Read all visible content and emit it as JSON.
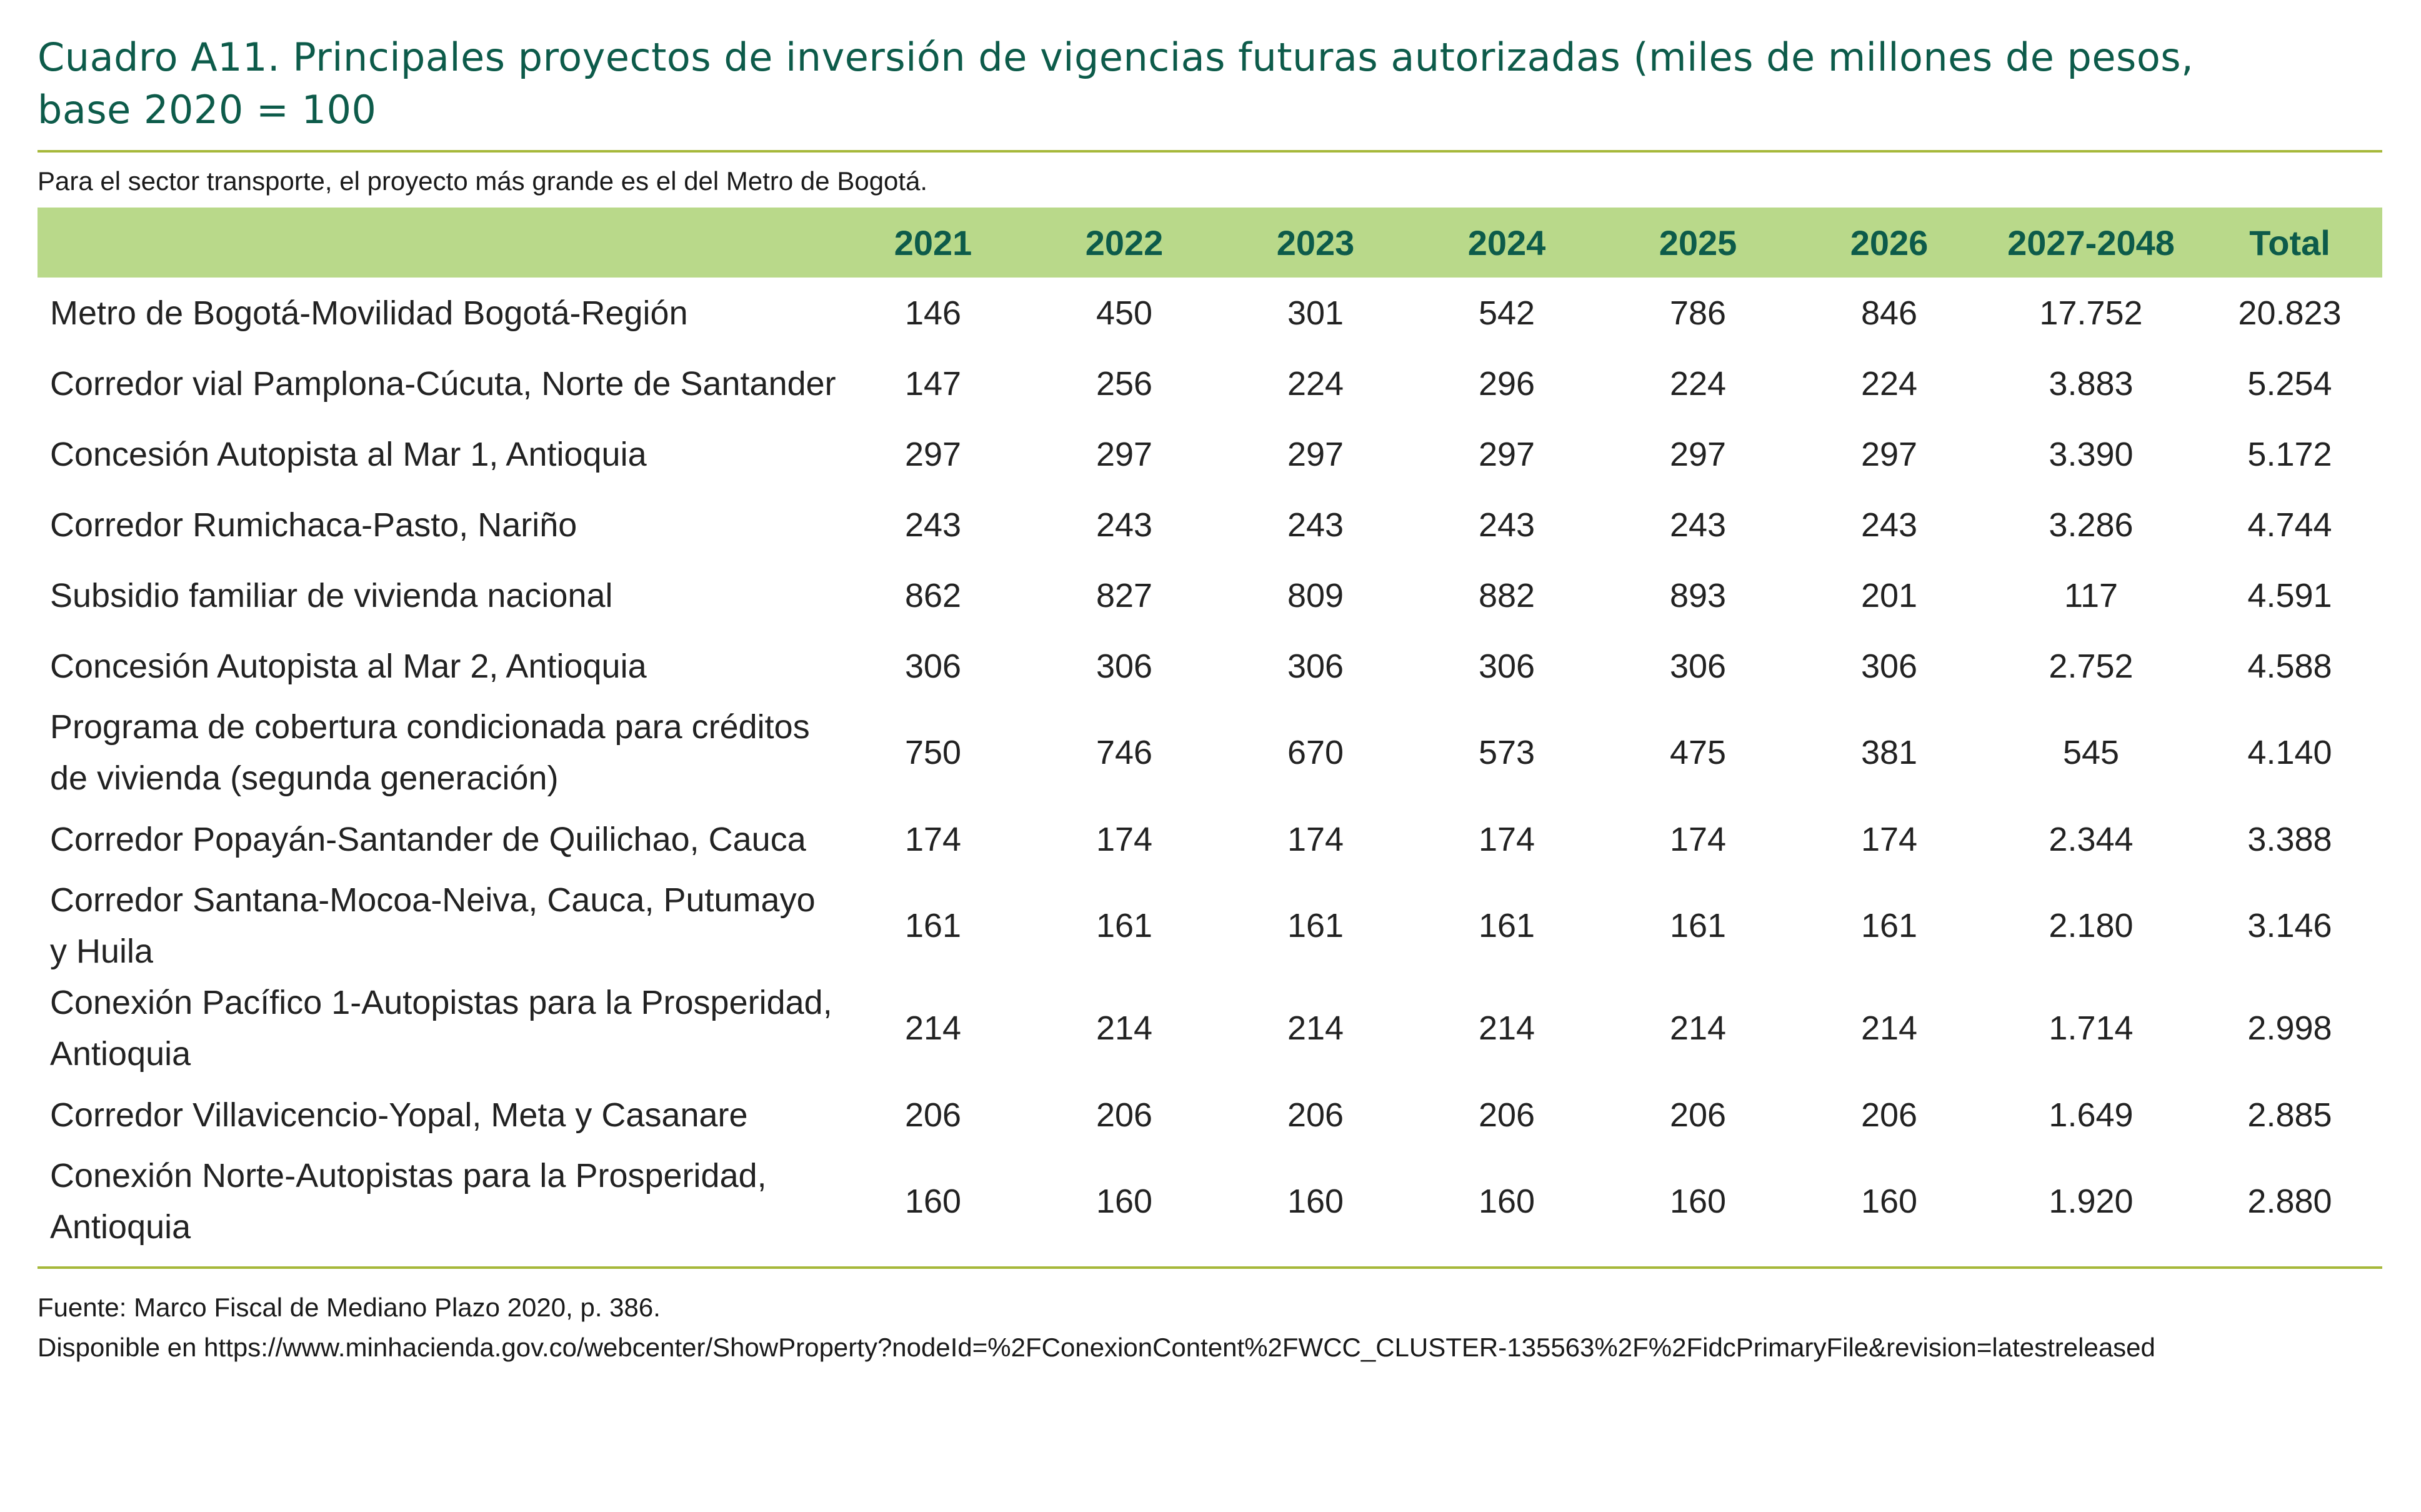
{
  "title_line1": "Cuadro A11.  Principales proyectos de inversión de vigencias futuras autorizadas (miles de millones de pesos,",
  "title_line2": "base 2020 = 100",
  "subtitle": "Para el sector transporte, el proyecto más grande es el del Metro de Bogotá.",
  "columns": [
    "",
    "2021",
    "2022",
    "2023",
    "2024",
    "2025",
    "2026",
    "2027-2048",
    "Total"
  ],
  "rows": [
    {
      "name": "Metro de Bogotá-Movilidad Bogotá-Región",
      "values": [
        "146",
        "450",
        "301",
        "542",
        "786",
        "846",
        "17.752",
        "20.823"
      ]
    },
    {
      "name": "Corredor vial Pamplona-Cúcuta, Norte de Santander",
      "values": [
        "147",
        "256",
        "224",
        "296",
        "224",
        "224",
        "3.883",
        "5.254"
      ]
    },
    {
      "name": "Concesión Autopista al Mar 1, Antioquia",
      "values": [
        "297",
        "297",
        "297",
        "297",
        "297",
        "297",
        "3.390",
        "5.172"
      ]
    },
    {
      "name": "Corredor Rumichaca-Pasto, Nariño",
      "values": [
        "243",
        "243",
        "243",
        "243",
        "243",
        "243",
        "3.286",
        "4.744"
      ]
    },
    {
      "name": "Subsidio familiar de vivienda nacional",
      "values": [
        "862",
        "827",
        "809",
        "882",
        "893",
        "201",
        "117",
        "4.591"
      ]
    },
    {
      "name": "Concesión Autopista al Mar 2, Antioquia",
      "values": [
        "306",
        "306",
        "306",
        "306",
        "306",
        "306",
        "2.752",
        "4.588"
      ]
    },
    {
      "name": "Programa de cobertura condicionada para créditos de vivienda (segunda generación)",
      "values": [
        "750",
        "746",
        "670",
        "573",
        "475",
        "381",
        "545",
        "4.140"
      ]
    },
    {
      "name": "Corredor Popayán-Santander de Quilichao, Cauca",
      "values": [
        "174",
        "174",
        "174",
        "174",
        "174",
        "174",
        "2.344",
        "3.388"
      ]
    },
    {
      "name": "Corredor Santana-Mocoa-Neiva, Cauca, Putumayo y Huila",
      "values": [
        "161",
        "161",
        "161",
        "161",
        "161",
        "161",
        "2.180",
        "3.146"
      ]
    },
    {
      "name": "Conexión Pacífico 1-Autopistas para la Prosperidad, Antioquia",
      "values": [
        "214",
        "214",
        "214",
        "214",
        "214",
        "214",
        "1.714",
        "2.998"
      ]
    },
    {
      "name": "Corredor Villavicencio-Yopal, Meta y Casanare",
      "values": [
        "206",
        "206",
        "206",
        "206",
        "206",
        "206",
        "1.649",
        "2.885"
      ]
    },
    {
      "name": "Conexión Norte-Autopistas para la Prosperidad, Antioquia",
      "values": [
        "160",
        "160",
        "160",
        "160",
        "160",
        "160",
        "1.920",
        "2.880"
      ]
    }
  ],
  "footer": {
    "source": "Fuente: Marco Fiscal de Mediano Plazo 2020, p. 386.",
    "available": "Disponible en https://www.minhacienda.gov.co/webcenter/ShowProperty?nodeId=%2FConexionContent%2FWCC_CLUSTER-135563%2F%2FidcPrimaryFile&revision=latestreleased"
  },
  "colors": {
    "title": "#0d5b4a",
    "header_bg": "#b9d98a",
    "rule": "#a6b83a"
  }
}
